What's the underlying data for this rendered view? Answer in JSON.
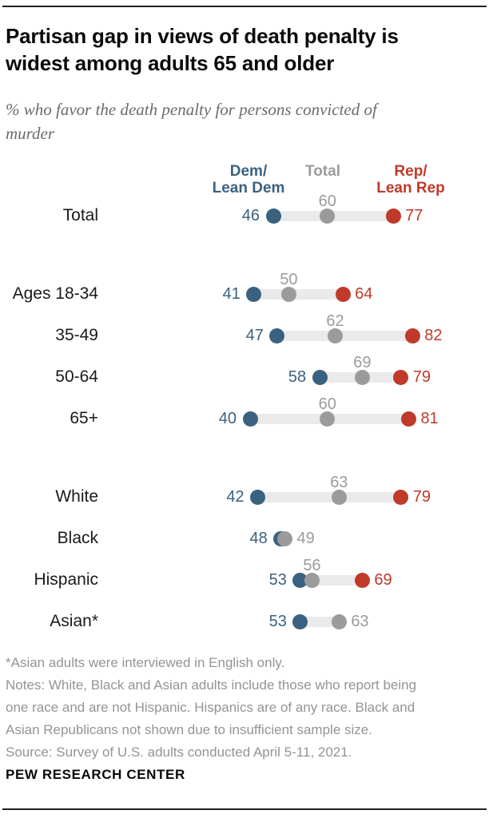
{
  "header": {
    "title_lines": [
      "Partisan gap in views of death penalty is",
      "widest among adults 65 and older"
    ],
    "subtitle_lines": [
      "% who favor the death penalty for persons convicted of",
      "murder"
    ]
  },
  "chart_data": {
    "type": "dumbbell-dot",
    "title": "Partisan gap in views of death penalty is widest among adults 65 and older",
    "subtitle": "% who favor the death penalty for persons convicted of murder",
    "unit": "percent who favor",
    "xlim": [
      38,
      85
    ],
    "legend_position": "top",
    "legend": {
      "dem": {
        "lines": [
          "Dem/",
          "Lean Dem"
        ],
        "color": "#3a6280"
      },
      "total": {
        "lines": [
          "Total",
          ""
        ],
        "color": "#9b9b9b"
      },
      "rep": {
        "lines": [
          "Rep/",
          "Lean Rep"
        ],
        "color": "#bf3a2a"
      }
    },
    "colors": {
      "dem": "#3a6280",
      "total": "#9b9b9b",
      "rep": "#bf3a2a",
      "track": "#eaeaea"
    },
    "groups": [
      {
        "name": "overall",
        "rows": [
          {
            "label": "Total",
            "dem": 46,
            "total": 60,
            "rep": 77,
            "total_label_pos": "above"
          }
        ]
      },
      {
        "name": "age",
        "rows": [
          {
            "label": "Ages 18-34",
            "dem": 41,
            "total": 50,
            "rep": 64,
            "total_label_pos": "above"
          },
          {
            "label": "35-49",
            "dem": 47,
            "total": 62,
            "rep": 82,
            "total_label_pos": "above"
          },
          {
            "label": "50-64",
            "dem": 58,
            "total": 69,
            "rep": 79,
            "total_label_pos": "above"
          },
          {
            "label": "65+",
            "dem": 40,
            "total": 60,
            "rep": 81,
            "total_label_pos": "above"
          }
        ]
      },
      {
        "name": "race-ethnicity",
        "rows": [
          {
            "label": "White",
            "dem": 42,
            "total": 63,
            "rep": 79,
            "total_label_pos": "above"
          },
          {
            "label": "Black",
            "dem": 48,
            "total": 49,
            "rep": null,
            "total_label_pos": "right"
          },
          {
            "label": "Hispanic",
            "dem": 53,
            "total": 56,
            "rep": 69,
            "total_label_pos": "above"
          },
          {
            "label": "Asian*",
            "dem": 53,
            "total": 63,
            "rep": null,
            "total_label_pos": "right"
          }
        ]
      }
    ]
  },
  "footer": {
    "footnote": "*Asian adults were interviewed in English only.",
    "notes_lines": [
      "Notes: White, Black and Asian adults include those who report being",
      "one race and are not Hispanic. Hispanics are of any race. Black and",
      "Asian Republicans not shown due to insufficient sample size."
    ],
    "source": "Source: Survey of U.S. adults conducted April 5-11, 2021.",
    "wordmark": "PEW RESEARCH CENTER"
  }
}
